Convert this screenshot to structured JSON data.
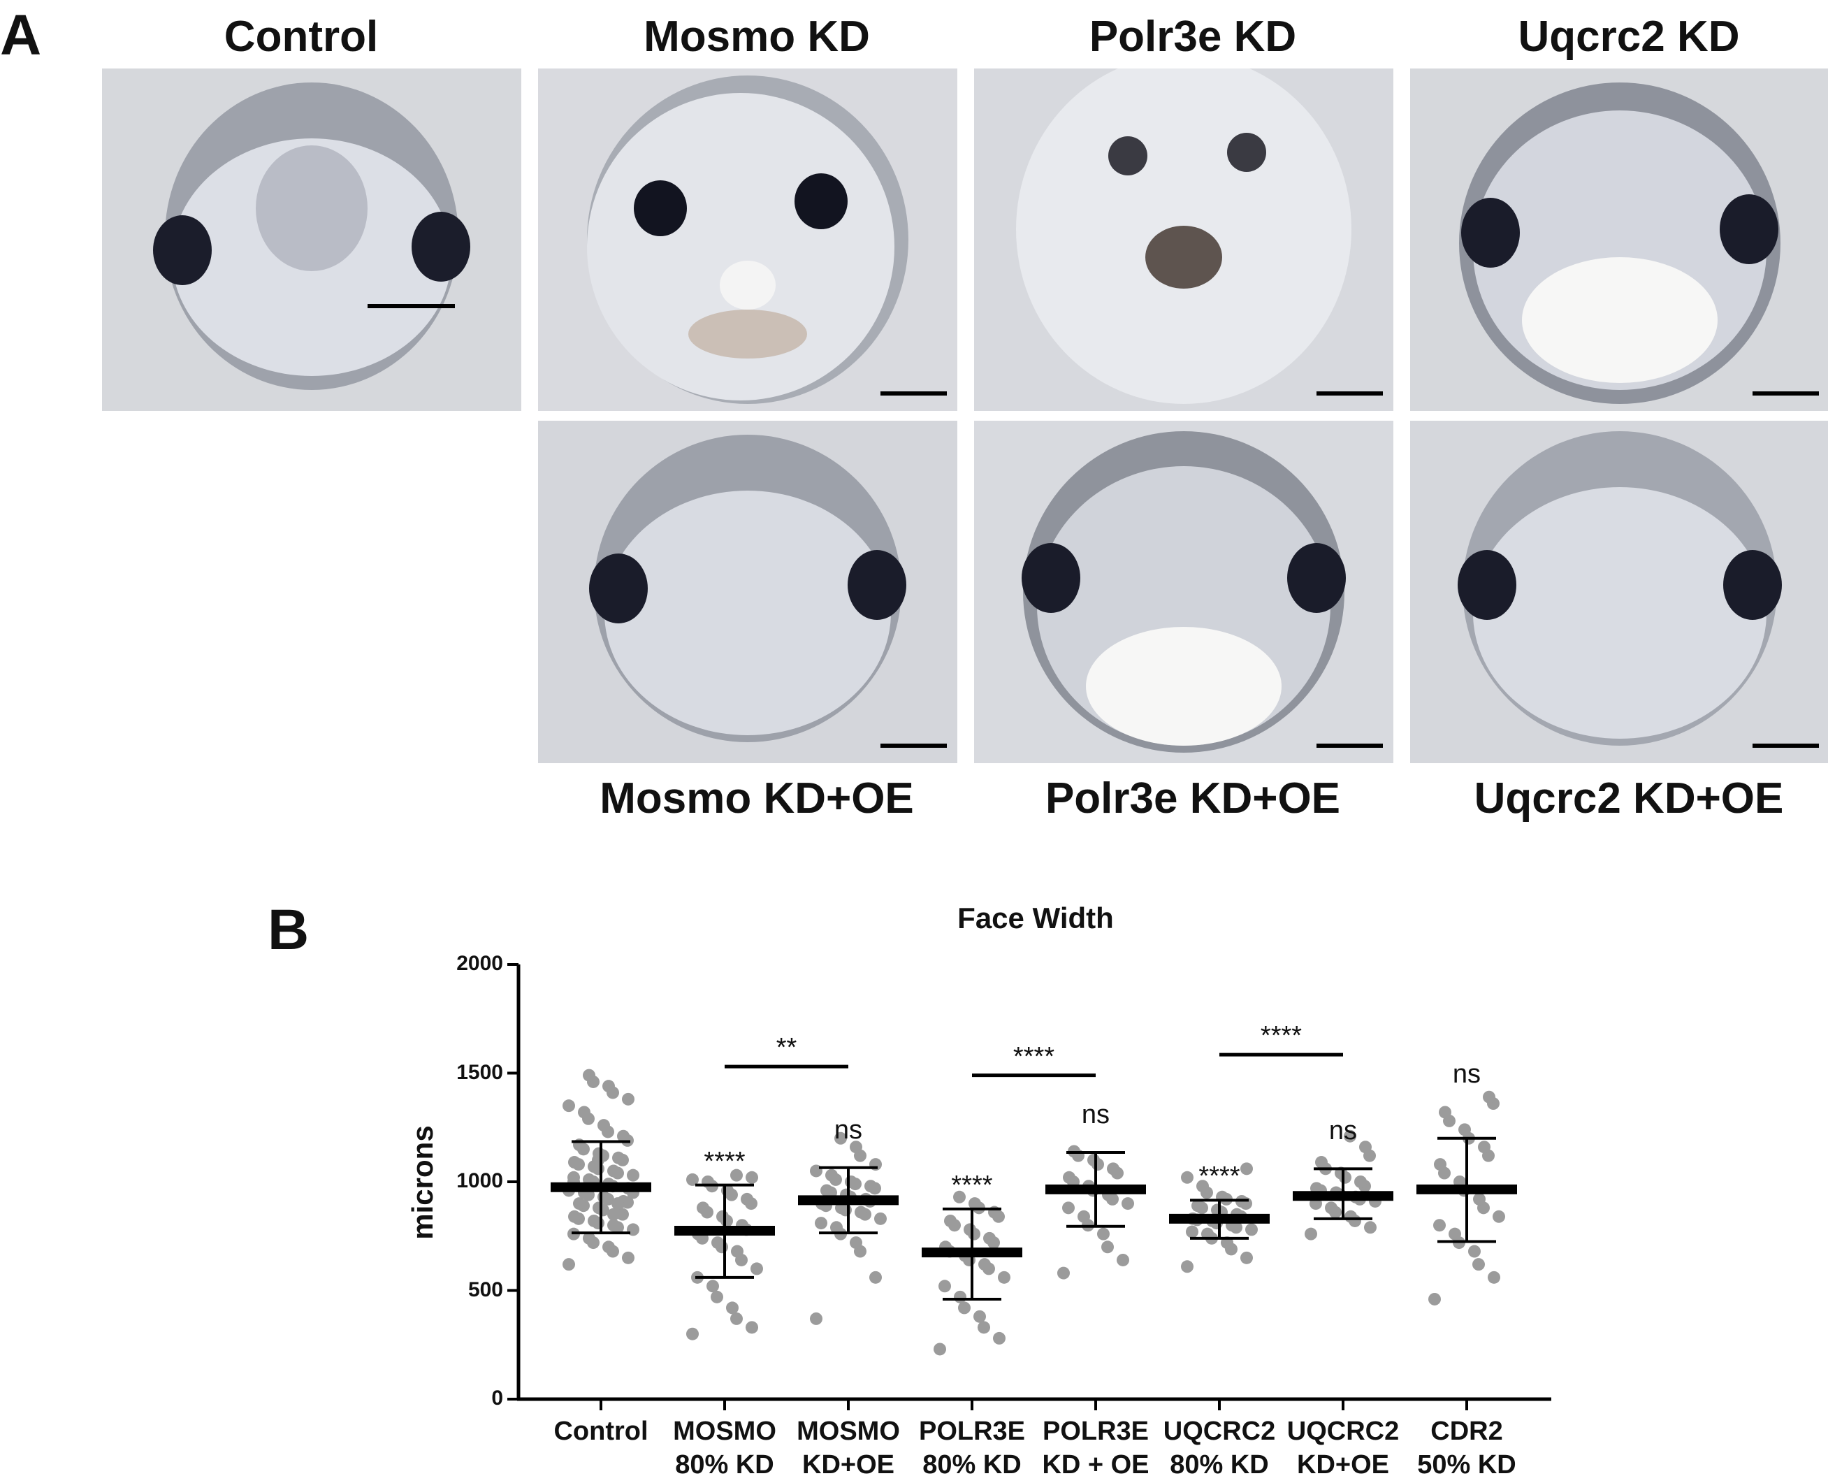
{
  "panel_a": {
    "letter": "A",
    "top_titles": [
      "Control",
      "Mosmo KD",
      "Polr3e KD",
      "Uqcrc2 KD"
    ],
    "bottom_captions": [
      "Mosmo KD+OE",
      "Polr3e KD+OE",
      "Uqcrc2 KD+OE"
    ]
  },
  "panel_b": {
    "letter": "B"
  },
  "chart_data": {
    "type": "scatter",
    "title": "Face Width",
    "ylabel": "microns",
    "xlabel": "",
    "ylim": [
      0,
      2000
    ],
    "yticks": [
      0,
      500,
      1000,
      1500,
      2000
    ],
    "categories": [
      "Control",
      "MOSMO\n80% KD",
      "MOSMO\nKD+OE",
      "POLR3E\n80% KD",
      "POLR3E\nKD + OE",
      "UQCRC2\n80% KD",
      "UQCRC2\nKD+OE",
      "CDR2\n50% KD"
    ],
    "means": [
      975,
      775,
      915,
      675,
      965,
      830,
      935,
      965
    ],
    "sd_upper": [
      1185,
      985,
      1065,
      875,
      1135,
      915,
      1060,
      1200
    ],
    "sd_lower": [
      765,
      560,
      765,
      460,
      795,
      740,
      830,
      725
    ],
    "significance": [
      "",
      "****",
      "ns",
      "****",
      "ns",
      "****",
      "ns",
      "ns"
    ],
    "comparisons": [
      {
        "from": 1,
        "to": 2,
        "label": "**",
        "y": 1530
      },
      {
        "from": 3,
        "to": 4,
        "label": "****",
        "y": 1490
      },
      {
        "from": 5,
        "to": 6,
        "label": "****",
        "y": 1585
      }
    ],
    "points": [
      [
        620,
        650,
        680,
        700,
        720,
        740,
        760,
        780,
        790,
        800,
        810,
        820,
        830,
        840,
        850,
        860,
        870,
        880,
        890,
        900,
        905,
        910,
        920,
        930,
        940,
        950,
        960,
        970,
        980,
        990,
        1000,
        1010,
        1020,
        1030,
        1040,
        1050,
        1060,
        1070,
        1080,
        1090,
        1100,
        1110,
        1120,
        1130,
        1150,
        1170,
        1190,
        1210,
        1230,
        1260,
        1290,
        1320,
        1350,
        1380,
        1410,
        1440,
        1460,
        1490,
        1000,
        950,
        900,
        850,
        1100
      ],
      [
        300,
        330,
        370,
        420,
        470,
        520,
        560,
        600,
        640,
        680,
        700,
        720,
        740,
        760,
        780,
        800,
        820,
        840,
        860,
        880,
        900,
        920,
        940,
        960,
        980,
        1000,
        1010,
        1020,
        1030
      ],
      [
        370,
        560,
        680,
        720,
        760,
        790,
        810,
        830,
        850,
        860,
        870,
        880,
        890,
        900,
        910,
        920,
        930,
        940,
        950,
        960,
        970,
        980,
        990,
        1000,
        1010,
        1030,
        1050,
        1080,
        1120,
        1160,
        1200
      ],
      [
        230,
        280,
        330,
        380,
        420,
        470,
        520,
        560,
        600,
        620,
        640,
        660,
        680,
        700,
        720,
        740,
        760,
        780,
        800,
        820,
        840,
        860,
        880,
        900,
        930
      ],
      [
        580,
        640,
        700,
        760,
        800,
        840,
        880,
        900,
        920,
        940,
        960,
        980,
        1000,
        1020,
        1040,
        1060,
        1080,
        1100,
        1120,
        1140
      ],
      [
        610,
        650,
        690,
        720,
        740,
        760,
        770,
        780,
        790,
        800,
        810,
        820,
        825,
        830,
        840,
        850,
        860,
        870,
        880,
        890,
        900,
        910,
        920,
        930,
        950,
        980,
        1020,
        1060
      ],
      [
        760,
        790,
        820,
        840,
        860,
        880,
        900,
        910,
        920,
        930,
        940,
        950,
        960,
        970,
        980,
        1000,
        1020,
        1040,
        1060,
        1090,
        1120,
        1160,
        1210
      ],
      [
        460,
        560,
        620,
        680,
        720,
        760,
        800,
        840,
        880,
        920,
        960,
        1000,
        1040,
        1080,
        1120,
        1160,
        1200,
        1240,
        1280,
        1320,
        1360,
        1390
      ]
    ]
  }
}
